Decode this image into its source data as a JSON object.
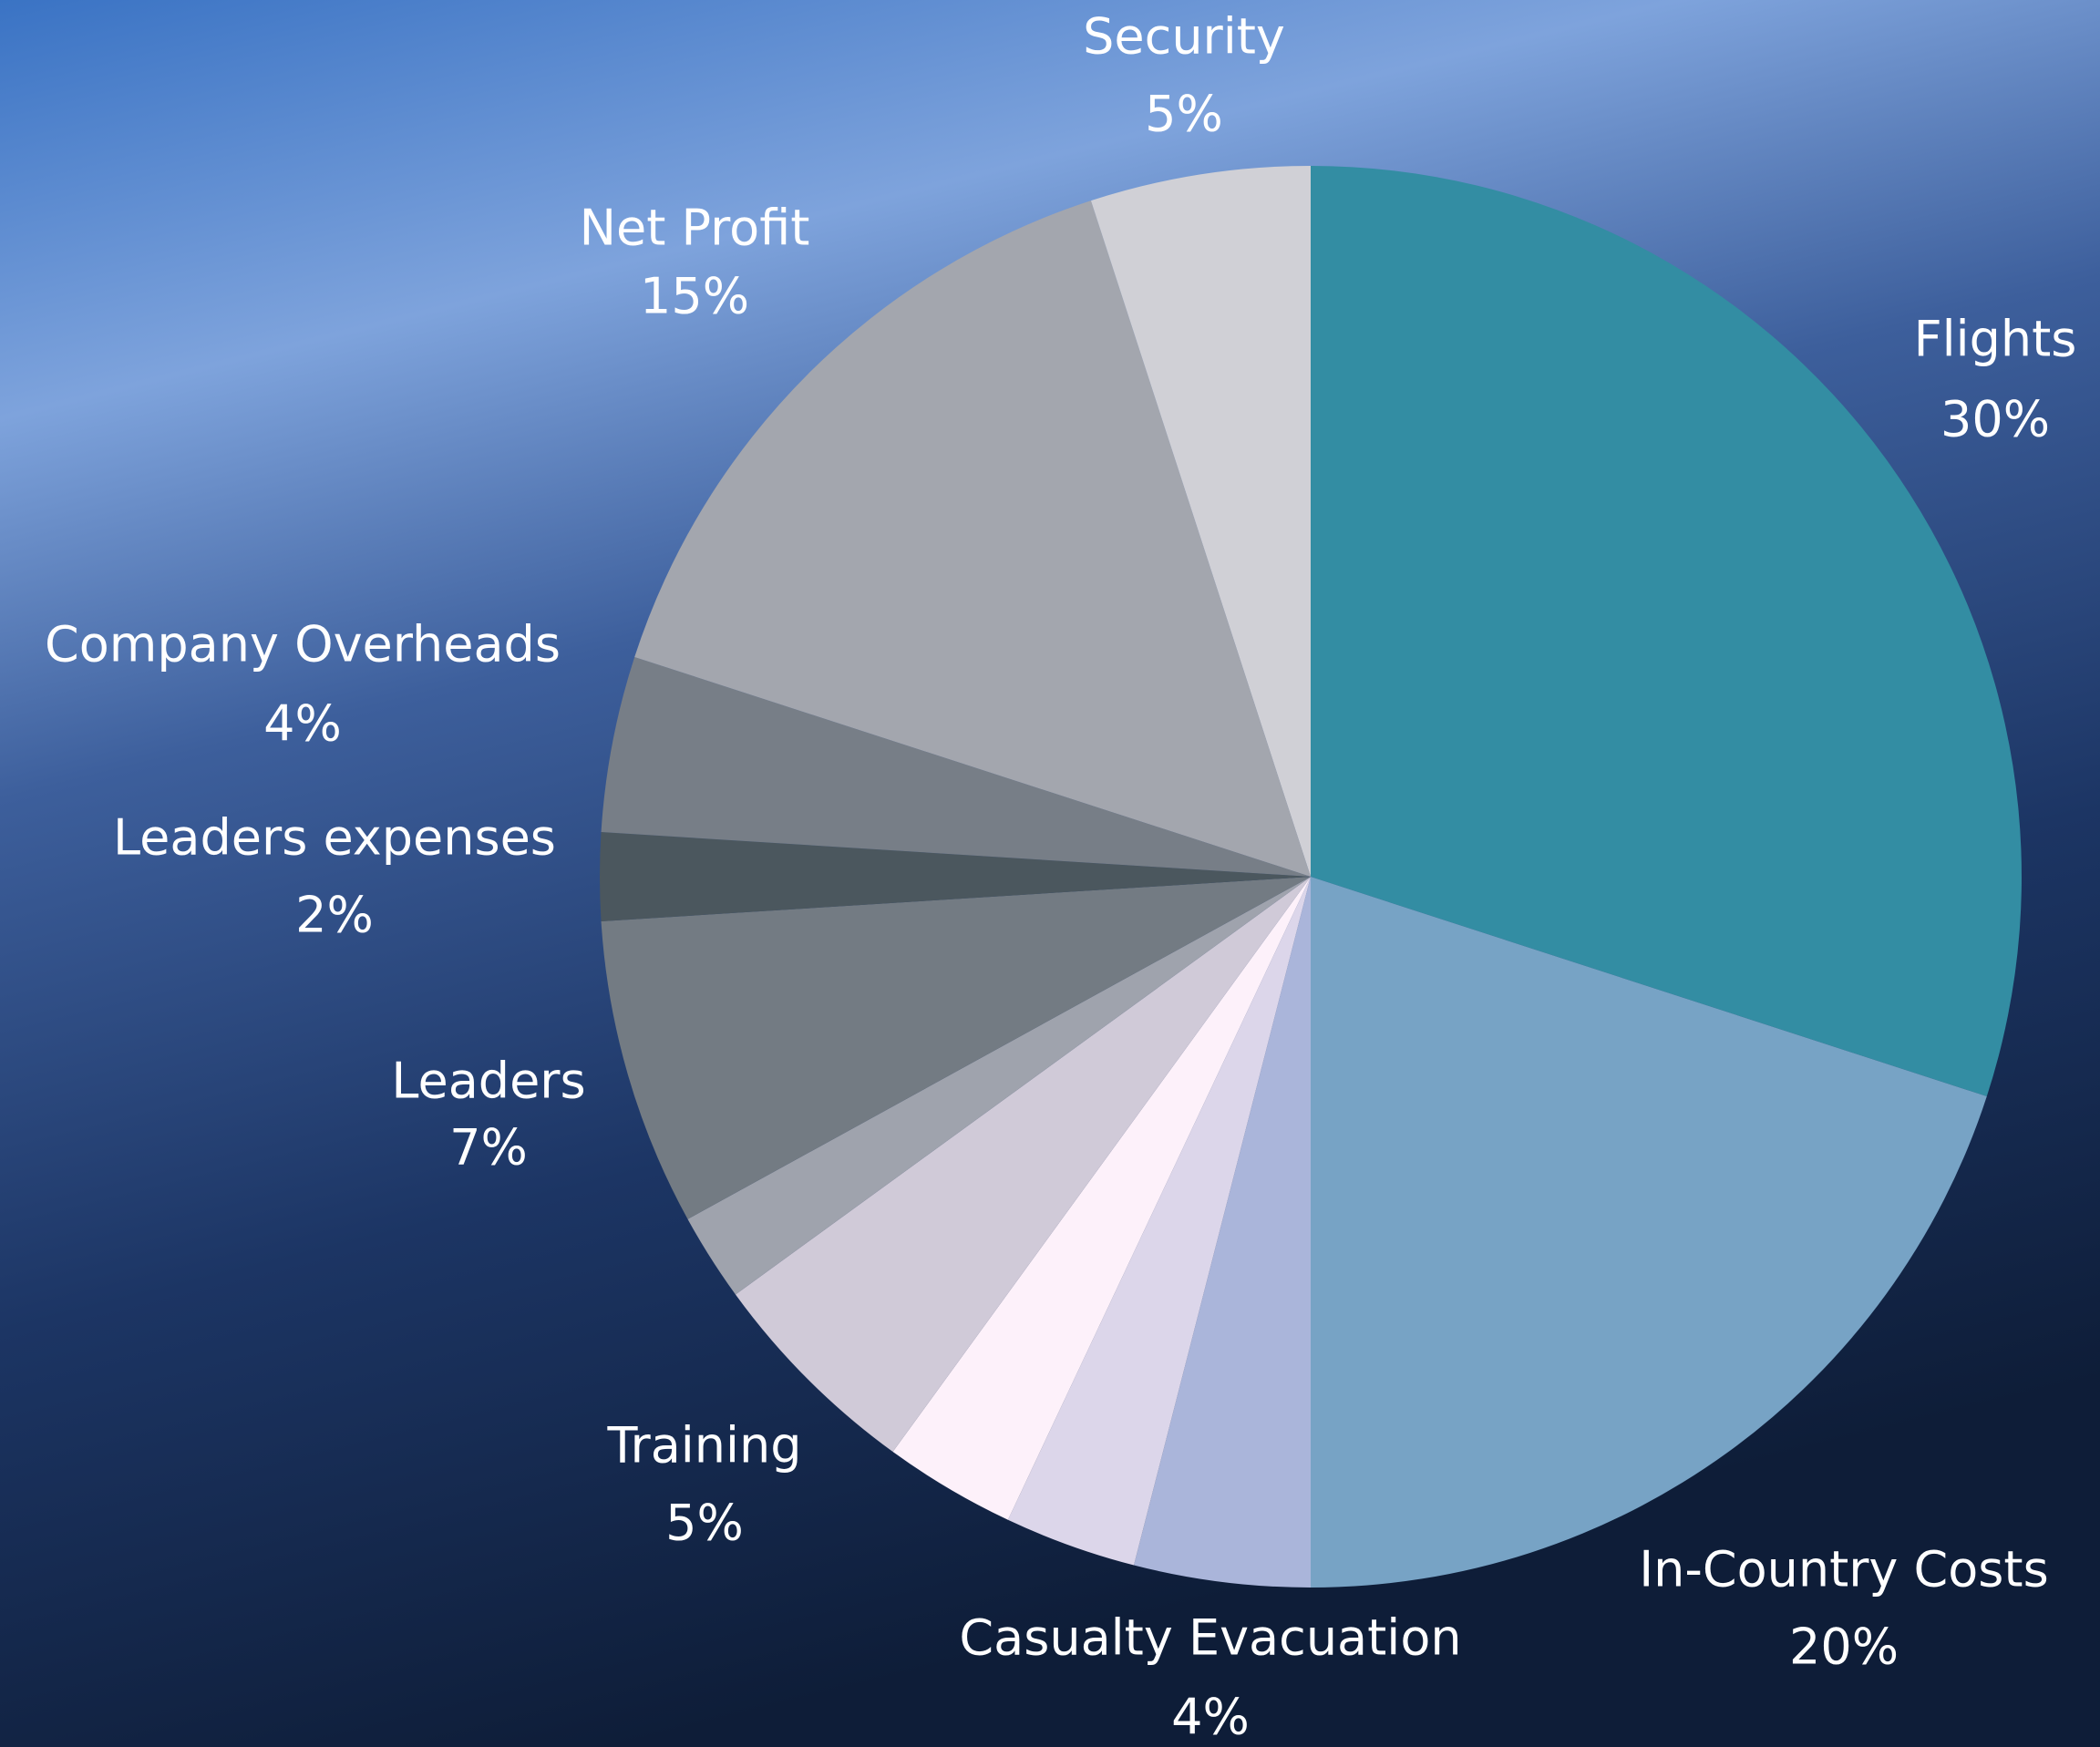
{
  "chart_data": {
    "type": "pie",
    "categories": [
      "Flights",
      "In-Country Costs",
      "Casualty Evacuation",
      null,
      null,
      "Training",
      null,
      "Leaders",
      "Leaders expenses",
      "Company Overheads",
      "Net Profit",
      "Security"
    ],
    "values": [
      30,
      20,
      4,
      3,
      3,
      5,
      2,
      7,
      2,
      4,
      15,
      5
    ],
    "value_labels": [
      "30%",
      "20%",
      "4%",
      null,
      null,
      "5%",
      null,
      "7%",
      "2%",
      "4%",
      "15%",
      "5%"
    ],
    "colors": [
      "#338da3",
      "#77a3c5",
      "#aab5da",
      "#dcd6ea",
      "#fdf1fa",
      "#d0cad8",
      "#9fa3ad",
      "#737b83",
      "#4b575e",
      "#777e87",
      "#a3a6ae",
      "#d0d0d6"
    ]
  }
}
